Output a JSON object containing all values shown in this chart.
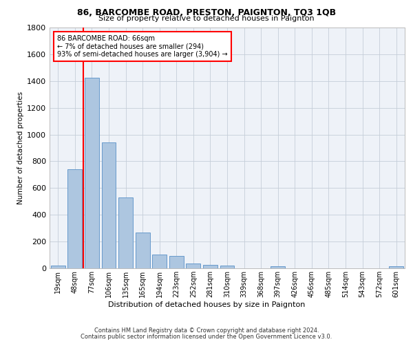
{
  "title": "86, BARCOMBE ROAD, PRESTON, PAIGNTON, TQ3 1QB",
  "subtitle": "Size of property relative to detached houses in Paignton",
  "xlabel": "Distribution of detached houses by size in Paignton",
  "ylabel": "Number of detached properties",
  "categories": [
    "19sqm",
    "48sqm",
    "77sqm",
    "106sqm",
    "135sqm",
    "165sqm",
    "194sqm",
    "223sqm",
    "252sqm",
    "281sqm",
    "310sqm",
    "339sqm",
    "368sqm",
    "397sqm",
    "426sqm",
    "456sqm",
    "485sqm",
    "514sqm",
    "543sqm",
    "572sqm",
    "601sqm"
  ],
  "values": [
    22,
    740,
    1425,
    940,
    530,
    265,
    105,
    95,
    38,
    28,
    22,
    0,
    0,
    15,
    0,
    0,
    0,
    0,
    0,
    0,
    15
  ],
  "bar_color": "#adc6e0",
  "bar_edge_color": "#6699cc",
  "annotation_label": "86 BARCOMBE ROAD: 66sqm",
  "annotation_line1": "← 7% of detached houses are smaller (294)",
  "annotation_line2": "93% of semi-detached houses are larger (3,904) →",
  "ylim": [
    0,
    1800
  ],
  "yticks": [
    0,
    200,
    400,
    600,
    800,
    1000,
    1200,
    1400,
    1600,
    1800
  ],
  "red_line_x": 1.5,
  "footer_line1": "Contains HM Land Registry data © Crown copyright and database right 2024.",
  "footer_line2": "Contains public sector information licensed under the Open Government Licence v3.0.",
  "background_color": "#eef2f8",
  "grid_color": "#c5cdd8"
}
